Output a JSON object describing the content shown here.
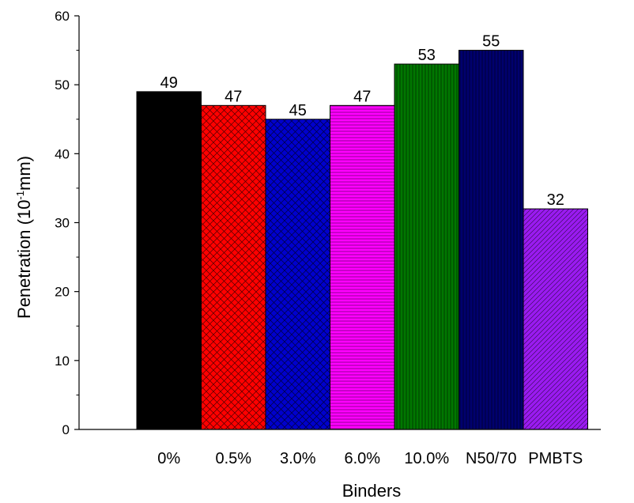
{
  "chart_data": {
    "type": "bar",
    "xlabel": "Binders",
    "ylabel": "Penetration (10",
    "ylabel_sup": "-1",
    "ylabel_tail": "mm)",
    "ylim": [
      0,
      60
    ],
    "yticks": [
      0,
      10,
      20,
      30,
      40,
      50,
      60
    ],
    "grid": false,
    "legend": "none",
    "categories": [
      "0%",
      "0.5%",
      "3.0%",
      "6.0%",
      "10.0%",
      "N50/70",
      "PMBTS"
    ],
    "values": [
      49,
      47,
      45,
      47,
      53,
      55,
      32
    ],
    "data_labels": [
      "49",
      "47",
      "45",
      "47",
      "53",
      "55",
      "32"
    ],
    "colors": [
      "#000000",
      "#ff0000",
      "#0000cc",
      "#ff00ff",
      "#007700",
      "#00006e",
      "#9a1bf0"
    ],
    "patterns": [
      "solid",
      "cross-diag",
      "cross-diag",
      "horizontal",
      "vertical",
      "vertical",
      "diag-down"
    ]
  }
}
